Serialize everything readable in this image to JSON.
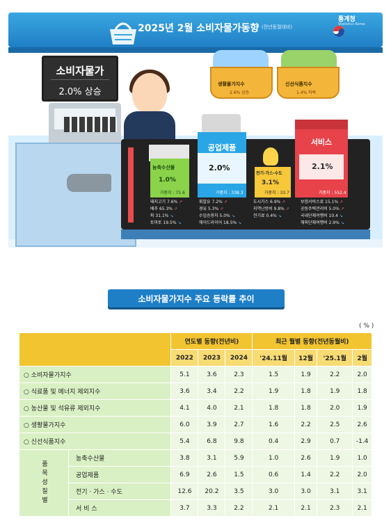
{
  "header": {
    "title": "2025년 2월 소비자물가동향",
    "subtitle": "(전년동월대비)",
    "logo_name": "통계청",
    "logo_sub": "Statistics Korea",
    "brand_color": "#1f7fc6"
  },
  "infographic": {
    "cpi_title": "소비자물가",
    "cpi_value": "2.0% 상승",
    "living": {
      "label": "생활물가지수",
      "value": "2.6% 상승"
    },
    "fresh": {
      "label": "신선식품지수",
      "value": "1.4% 하락"
    },
    "agri": {
      "label": "농축수산물",
      "value": "1.0%",
      "weight": "가중치 : 75.6",
      "items": [
        {
          "text": "돼지고기 7.6%",
          "dir": "up"
        },
        {
          "text": "배추 65.3%",
          "dir": "up"
        },
        {
          "text": "파 31.1%",
          "dir": "down"
        },
        {
          "text": "토마토 19.5%",
          "dir": "down"
        }
      ]
    },
    "industrial": {
      "label": "공업제품",
      "value": "2.0%",
      "weight": "가중치 : 338.3",
      "items": [
        {
          "text": "휘발유 7.2%",
          "dir": "up"
        },
        {
          "text": "경유 5.3%",
          "dir": "up"
        },
        {
          "text": "수입승용차 5.0%",
          "dir": "down"
        },
        {
          "text": "헤어드라이어 18.5%",
          "dir": "down"
        }
      ]
    },
    "utility": {
      "label": "전기·가스·수도",
      "value": "3.1%",
      "weight": "가중치 : 33.7",
      "items": [
        {
          "text": "도시가스 6.9%",
          "dir": "up"
        },
        {
          "text": "지역난방비 9.8%",
          "dir": "up"
        },
        {
          "text": "전기료 0.4%",
          "dir": "down"
        }
      ]
    },
    "service": {
      "label": "서비스",
      "value": "2.1%",
      "weight": "가중치 : 552.4",
      "items": [
        {
          "text": "보험서비스료 15.1%",
          "dir": "up"
        },
        {
          "text": "공동주택관리비 5.0%",
          "dir": "up"
        },
        {
          "text": "국내단체여행비 10.4",
          "dir": "down"
        },
        {
          "text": "해외단체여행비 2.9%",
          "dir": "down"
        }
      ]
    }
  },
  "section_title": "소비자물가지수 주요 등락률 추이",
  "unit": "( % )",
  "table": {
    "group_headers": [
      "연도별 동향(전년비)",
      "최근 월별 동향(전년동월비)"
    ],
    "columns": [
      "2022",
      "2023",
      "2024",
      "'24.11월",
      "12월",
      "'25.1월",
      "2월"
    ],
    "rows": [
      {
        "label": "○ 소비자물가지수",
        "values": [
          "5.1",
          "3.6",
          "2.3",
          "1.5",
          "1.9",
          "2.2",
          "2.0"
        ]
      },
      {
        "label": "○ 식료품 및 에너지 제외지수",
        "values": [
          "3.6",
          "3.4",
          "2.2",
          "1.9",
          "1.8",
          "1.9",
          "1.8"
        ]
      },
      {
        "label": "○ 농산물 및 석유류 제외지수",
        "values": [
          "4.1",
          "4.0",
          "2.1",
          "1.8",
          "1.8",
          "2.0",
          "1.9"
        ]
      },
      {
        "label": "○ 생활물가지수",
        "values": [
          "6.0",
          "3.9",
          "2.7",
          "1.6",
          "2.2",
          "2.5",
          "2.6"
        ]
      },
      {
        "label": "○ 신선식품지수",
        "values": [
          "5.4",
          "6.8",
          "9.8",
          "0.4",
          "2.9",
          "0.7",
          "-1.4"
        ]
      }
    ],
    "group_label": "품목성질별",
    "sub_rows": [
      {
        "label": "농축수산물",
        "values": [
          "3.8",
          "3.1",
          "5.9",
          "1.0",
          "2.6",
          "1.9",
          "1.0"
        ]
      },
      {
        "label": "공업제품",
        "values": [
          "6.9",
          "2.6",
          "1.5",
          "0.6",
          "1.4",
          "2.2",
          "2.0"
        ]
      },
      {
        "label": "전기 · 가스 · 수도",
        "values": [
          "12.6",
          "20.2",
          "3.5",
          "3.0",
          "3.0",
          "3.1",
          "3.1"
        ]
      },
      {
        "label": "서 비 스",
        "values": [
          "3.7",
          "3.3",
          "2.2",
          "2.1",
          "2.1",
          "2.3",
          "2.1"
        ]
      }
    ]
  }
}
